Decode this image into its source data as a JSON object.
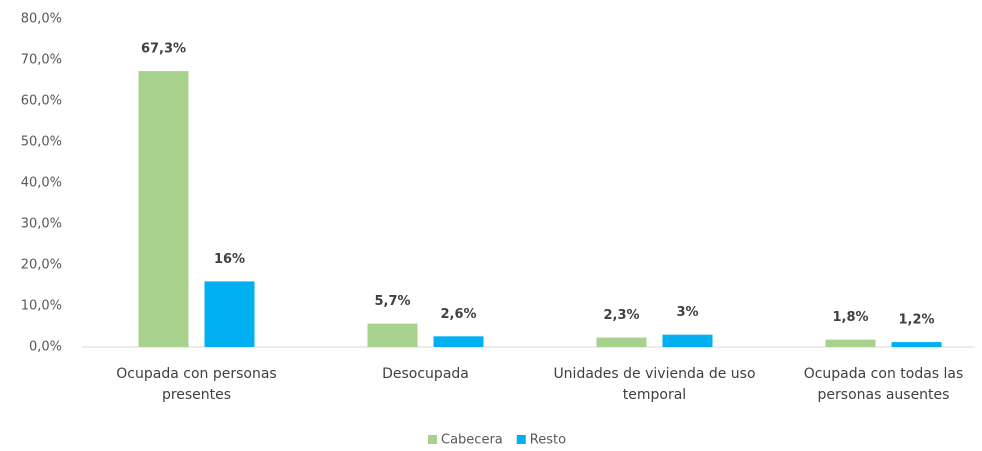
{
  "chart_data": {
    "type": "bar",
    "categories": [
      "Ocupada con personas presentes",
      "Desocupada",
      "Unidades de vivienda de uso temporal",
      "Ocupada con todas las personas ausentes"
    ],
    "series": [
      {
        "name": "Cabecera",
        "color": "#a9d18e",
        "values": [
          67.3,
          5.7,
          2.3,
          1.8
        ],
        "value_labels": [
          "67,3%",
          "5,7%",
          "2,3%",
          "1,8%"
        ]
      },
      {
        "name": "Resto",
        "color": "#00b0f0",
        "values": [
          16,
          2.6,
          3,
          1.2
        ],
        "value_labels": [
          "16%",
          "2,6%",
          "3%",
          "1,2%"
        ]
      }
    ],
    "ylim": [
      0,
      80
    ],
    "yticks": [
      {
        "value": 0,
        "label": "0,0%"
      },
      {
        "value": 10,
        "label": "10,0%"
      },
      {
        "value": 20,
        "label": "20,0%"
      },
      {
        "value": 30,
        "label": "30,0%"
      },
      {
        "value": 40,
        "label": "40,0%"
      },
      {
        "value": 50,
        "label": "50,0%"
      },
      {
        "value": 60,
        "label": "60,0%"
      },
      {
        "value": 70,
        "label": "70,0%"
      },
      {
        "value": 80,
        "label": "80,0%"
      }
    ],
    "legend": "bottom"
  }
}
